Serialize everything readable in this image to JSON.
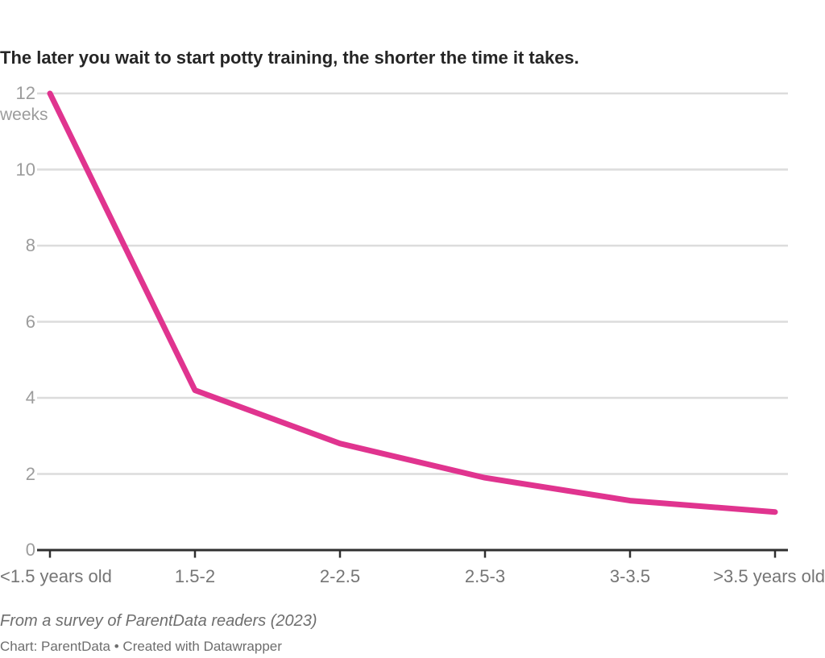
{
  "chart_data": {
    "type": "line",
    "title": "The later you wait to start potty training, the shorter the time it takes.",
    "categories": [
      "<1.5 years old",
      "1.5-2",
      "2-2.5",
      "2.5-3",
      "3-3.5",
      ">3.5 years old"
    ],
    "values": [
      12,
      4.2,
      2.8,
      1.9,
      1.3,
      1
    ],
    "unit_label": "weeks",
    "xlabel": "",
    "ylabel": "weeks",
    "ylim": [
      0,
      12
    ],
    "yticks": [
      0,
      2,
      4,
      6,
      8,
      10,
      12
    ],
    "grid": true,
    "legend_position": "none",
    "line_color": "#e0348f",
    "gridline_color": "#dcdcdc",
    "axis_color": "#2f2f2f",
    "y_label_color": "#9c9c9c",
    "x_label_color": "#757575"
  },
  "footer": {
    "source_note": "From a survey of ParentData readers (2023)",
    "byline": "Chart: ParentData • Created with Datawrapper"
  }
}
